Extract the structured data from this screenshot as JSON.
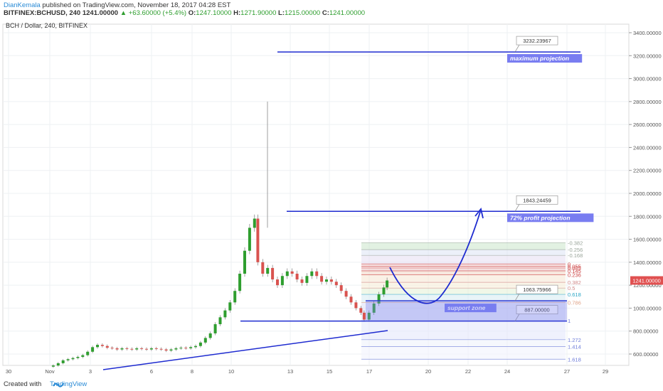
{
  "header": {
    "author": "DianKemala",
    "published_text": "published on TradingView.com, November 18, 2017 04:28 EST",
    "symbol": "BITFINEX:BCHUSD, 240",
    "last": "1241.00000",
    "change": "+63.60000 (+5.4%)",
    "open_label": "O:",
    "open": "1247.10000",
    "high_label": "H:",
    "high": "1271.90000",
    "low_label": "L:",
    "low": "1215.00000",
    "close_label": "C:",
    "close": "1241.00000"
  },
  "footer": {
    "created_with": "Created with",
    "brand": "TradingView"
  },
  "colors": {
    "up": "#2f9e2f",
    "down": "#d9534f",
    "annotation": "#1e2bd0",
    "price_tag": "#e05050"
  },
  "chart_data": {
    "type": "candlestick",
    "title": "BCH / Dollar, 240, BITFINEX",
    "y_ticks": [
      600,
      800,
      1000,
      1200,
      1400,
      1600,
      1800,
      2000,
      2200,
      2400,
      2600,
      2800,
      3000,
      3200,
      3400
    ],
    "y_tick_labels": [
      "600.00000",
      "800.00000",
      "1000.00000",
      "1200.00000",
      "1400.00000",
      "1600.00000",
      "1800.00000",
      "2000.00000",
      "2200.00000",
      "2400.00000",
      "2600.00000",
      "2800.00000",
      "3000.00000",
      "3200.00000",
      "3400.00000"
    ],
    "x_ticks": [
      "30",
      "Nov",
      "3",
      "6",
      "8",
      "10",
      "13",
      "15",
      "17",
      "20",
      "22",
      "24",
      "27",
      "29"
    ],
    "last_price_label": "1241.00000",
    "close_path": [
      [
        0,
        490
      ],
      [
        6,
        500
      ],
      [
        12,
        520
      ],
      [
        18,
        545
      ],
      [
        24,
        555
      ],
      [
        30,
        565
      ],
      [
        36,
        575
      ],
      [
        42,
        590
      ],
      [
        48,
        620
      ],
      [
        54,
        660
      ],
      [
        60,
        680
      ],
      [
        66,
        670
      ],
      [
        72,
        655
      ],
      [
        78,
        650
      ],
      [
        84,
        640
      ],
      [
        90,
        650
      ],
      [
        96,
        645
      ],
      [
        102,
        640
      ],
      [
        108,
        650
      ],
      [
        114,
        645
      ],
      [
        120,
        640
      ],
      [
        126,
        650
      ],
      [
        132,
        645
      ],
      [
        138,
        640
      ],
      [
        144,
        630
      ],
      [
        150,
        640
      ],
      [
        156,
        650
      ],
      [
        162,
        655
      ],
      [
        168,
        650
      ],
      [
        174,
        660
      ],
      [
        180,
        670
      ],
      [
        186,
        700
      ],
      [
        192,
        740
      ],
      [
        198,
        780
      ],
      [
        204,
        860
      ],
      [
        210,
        920
      ],
      [
        216,
        980
      ],
      [
        222,
        1050
      ],
      [
        228,
        1150
      ],
      [
        234,
        1300
      ],
      [
        240,
        1500
      ],
      [
        246,
        1700
      ],
      [
        252,
        1780
      ],
      [
        256,
        1400
      ],
      [
        262,
        1300
      ],
      [
        268,
        1350
      ],
      [
        274,
        1250
      ],
      [
        280,
        1200
      ],
      [
        286,
        1280
      ],
      [
        292,
        1320
      ],
      [
        298,
        1300
      ],
      [
        304,
        1250
      ],
      [
        310,
        1220
      ],
      [
        316,
        1280
      ],
      [
        322,
        1320
      ],
      [
        328,
        1280
      ],
      [
        334,
        1230
      ],
      [
        340,
        1250
      ],
      [
        346,
        1230
      ],
      [
        352,
        1200
      ],
      [
        358,
        1150
      ],
      [
        364,
        1100
      ],
      [
        370,
        1050
      ],
      [
        376,
        1000
      ],
      [
        382,
        960
      ],
      [
        386,
        900
      ],
      [
        392,
        960
      ],
      [
        398,
        1040
      ],
      [
        404,
        1120
      ],
      [
        410,
        1180
      ],
      [
        414,
        1241
      ]
    ],
    "levels": [
      {
        "label": "maximum projection",
        "value": 3232.23967,
        "value_label": "3232.23967"
      },
      {
        "label": "72% profit projection",
        "value": 1843.24459,
        "value_label": "1843.24459"
      },
      {
        "label": "support zone",
        "value": 1063.75966,
        "value_label": "1063.75966"
      },
      {
        "label": "",
        "value": 887.0,
        "value_label": "887.00000"
      }
    ],
    "fibonacci": [
      {
        "ratio": "-0.382",
        "price": 1570
      },
      {
        "ratio": "-0.256",
        "price": 1510
      },
      {
        "ratio": "-0.168",
        "price": 1460
      },
      {
        "ratio": "0",
        "price": 1385
      },
      {
        "ratio": "0.055",
        "price": 1365
      },
      {
        "ratio": "0.085",
        "price": 1350
      },
      {
        "ratio": "0.145",
        "price": 1325
      },
      {
        "ratio": "0.236",
        "price": 1290
      },
      {
        "ratio": "0.382",
        "price": 1225
      },
      {
        "ratio": "0.5",
        "price": 1175
      },
      {
        "ratio": "0.618",
        "price": 1120
      },
      {
        "ratio": "0.786",
        "price": 1050
      },
      {
        "ratio": "1",
        "price": 890
      },
      {
        "ratio": "1.272",
        "price": 725
      },
      {
        "ratio": "1.414",
        "price": 665
      },
      {
        "ratio": "1.618",
        "price": 555
      }
    ]
  }
}
